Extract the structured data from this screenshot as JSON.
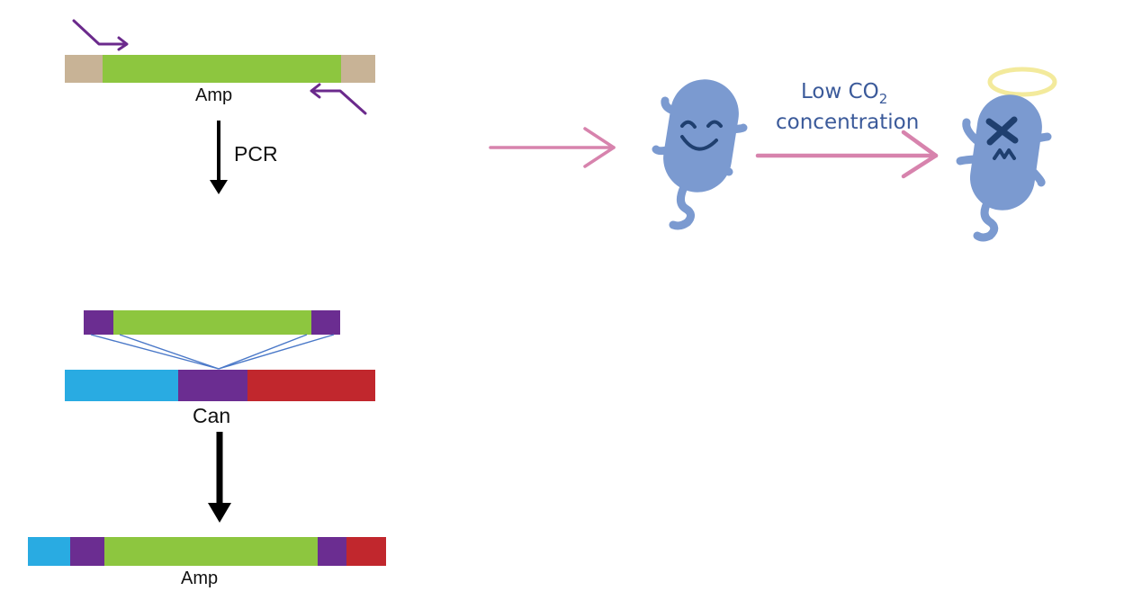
{
  "colors": {
    "flank": "#c8b396",
    "amp_green": "#8dc63f",
    "primer_purple": "#6b2a8c",
    "homology_purple": "#6b2d91",
    "can_left_blue": "#29abe2",
    "can_right_red": "#c1272d",
    "crossover_line": "#4a78c8",
    "step_arrow": "#000000",
    "pink_arrow": "#d783ad",
    "bacterium_body": "#7b9ad0",
    "bacterium_face": "#1f3f6f",
    "halo": "#f3ea9c",
    "caption_blue": "#3b5a9a"
  },
  "diagram": {
    "amp_label": "Amp",
    "pcr_label": "PCR",
    "can_label": "Can",
    "result_label": "Amp",
    "condition_line1": "Low CO",
    "condition_subscript": "2",
    "condition_line2": "concentration"
  },
  "icons": {
    "healthy_cell": "happy-bacterium-icon",
    "dead_cell": "dead-bacterium-with-halo-icon",
    "forward_primer": "forward-primer-arrow-icon",
    "reverse_primer": "reverse-primer-arrow-icon"
  }
}
